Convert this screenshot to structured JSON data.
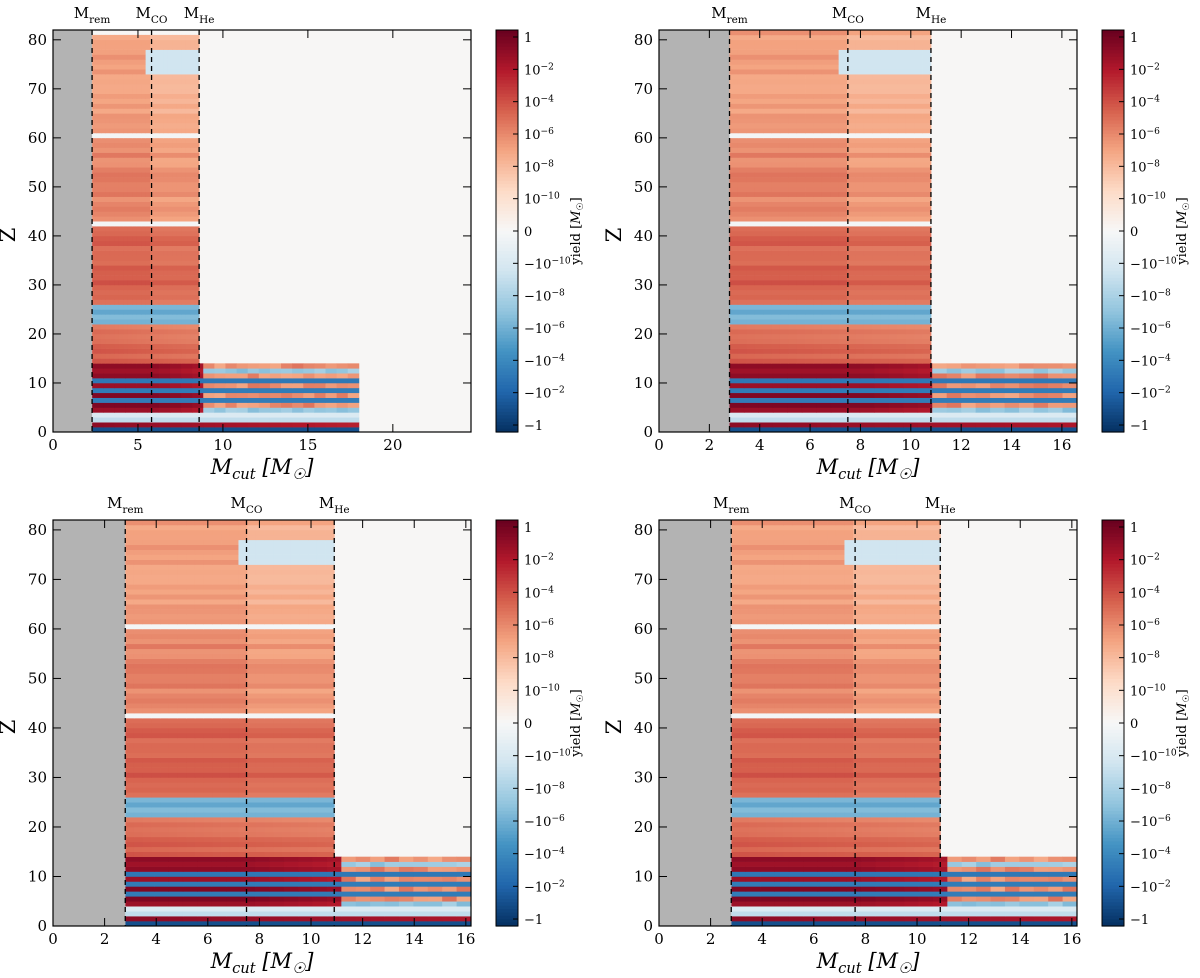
{
  "colors": {
    "remnant_fill": "#b3b3b3",
    "zero_fill": "#f7f6f5",
    "colormap": [
      "#053061",
      "#2166ac",
      "#4393c3",
      "#92c5de",
      "#d1e5f0",
      "#f7f7f7",
      "#fddbc7",
      "#f4a582",
      "#d6604d",
      "#b2182b",
      "#67001f"
    ]
  },
  "chart_data": [
    {
      "type": "heatmap",
      "panel": "top-left",
      "xlabel": "M_cut [M_sun]",
      "ylabel": "Z",
      "xlim": [
        0,
        24.6
      ],
      "ylim": [
        0,
        82
      ],
      "xticks": [
        0,
        5,
        10,
        15,
        20
      ],
      "yticks": [
        0,
        10,
        20,
        30,
        40,
        50,
        60,
        70,
        80
      ],
      "markers": [
        {
          "label": "M_rem",
          "x": 2.3
        },
        {
          "label": "M_CO",
          "x": 5.8
        },
        {
          "label": "M_He",
          "x": 8.6
        }
      ],
      "colorbar": {
        "label": "yield [M_sun]",
        "ticks": [
          "1",
          "10^-2",
          "10^-4",
          "10^-6",
          "10^-8",
          "10^-10",
          "0",
          "-10^-10",
          "-10^-8",
          "-10^-6",
          "-10^-4",
          "-10^-2",
          "-1"
        ]
      },
      "extents": {
        "light": 8.3,
        "cno": 18.0
      },
      "heavy_max_z": 81
    },
    {
      "type": "heatmap",
      "panel": "top-right",
      "xlabel": "M_cut [M_sun]",
      "ylabel": "Z",
      "xlim": [
        0,
        16.6
      ],
      "ylim": [
        0,
        82
      ],
      "xticks": [
        0,
        2,
        4,
        6,
        8,
        10,
        12,
        14,
        16
      ],
      "yticks": [
        0,
        10,
        20,
        30,
        40,
        50,
        60,
        70,
        80
      ],
      "markers": [
        {
          "label": "M_rem",
          "x": 2.8
        },
        {
          "label": "M_CO",
          "x": 7.5
        },
        {
          "label": "M_He",
          "x": 10.8
        }
      ],
      "colorbar": {
        "label": "yield [M_sun]",
        "ticks": [
          "1",
          "10^-2",
          "10^-4",
          "10^-6",
          "10^-8",
          "10^-10",
          "0",
          "-10^-10",
          "-10^-8",
          "-10^-6",
          "-10^-4",
          "-10^-2",
          "-1"
        ]
      },
      "extents": {
        "light": 10.8,
        "cno": 16.6
      },
      "heavy_max_z": 82
    },
    {
      "type": "heatmap",
      "panel": "bottom-left",
      "xlabel": "M_cut [M_sun]",
      "ylabel": "Z",
      "xlim": [
        0,
        16.2
      ],
      "ylim": [
        0,
        82
      ],
      "xticks": [
        0,
        2,
        4,
        6,
        8,
        10,
        12,
        14,
        16
      ],
      "yticks": [
        0,
        10,
        20,
        30,
        40,
        50,
        60,
        70,
        80
      ],
      "markers": [
        {
          "label": "M_rem",
          "x": 2.8
        },
        {
          "label": "M_CO",
          "x": 7.5
        },
        {
          "label": "M_He",
          "x": 10.9
        }
      ],
      "colorbar": {
        "label": "yield [M_sun]",
        "ticks": [
          "1",
          "10^-2",
          "10^-4",
          "10^-6",
          "10^-8",
          "10^-10",
          "0",
          "-10^-10",
          "-10^-8",
          "-10^-6",
          "-10^-4",
          "-10^-2",
          "-1"
        ]
      },
      "extents": {
        "light": 10.9,
        "cno": 16.2
      },
      "heavy_max_z": 82
    },
    {
      "type": "heatmap",
      "panel": "bottom-right",
      "xlabel": "M_cut [M_sun]",
      "ylabel": "Z",
      "xlim": [
        0,
        16.2
      ],
      "ylim": [
        0,
        82
      ],
      "xticks": [
        0,
        2,
        4,
        6,
        8,
        10,
        12,
        14,
        16
      ],
      "yticks": [
        0,
        10,
        20,
        30,
        40,
        50,
        60,
        70,
        80
      ],
      "markers": [
        {
          "label": "M_rem",
          "x": 2.8
        },
        {
          "label": "M_CO",
          "x": 7.6
        },
        {
          "label": "M_He",
          "x": 10.9
        }
      ],
      "colorbar": {
        "label": "yield [M_sun]",
        "ticks": [
          "1",
          "10^-2",
          "10^-4",
          "10^-6",
          "10^-8",
          "10^-10",
          "0",
          "-10^-10",
          "-10^-8",
          "-10^-6",
          "-10^-4",
          "-10^-2",
          "-1"
        ]
      },
      "extents": {
        "light": 10.9,
        "cno": 16.2
      },
      "heavy_max_z": 82
    }
  ]
}
